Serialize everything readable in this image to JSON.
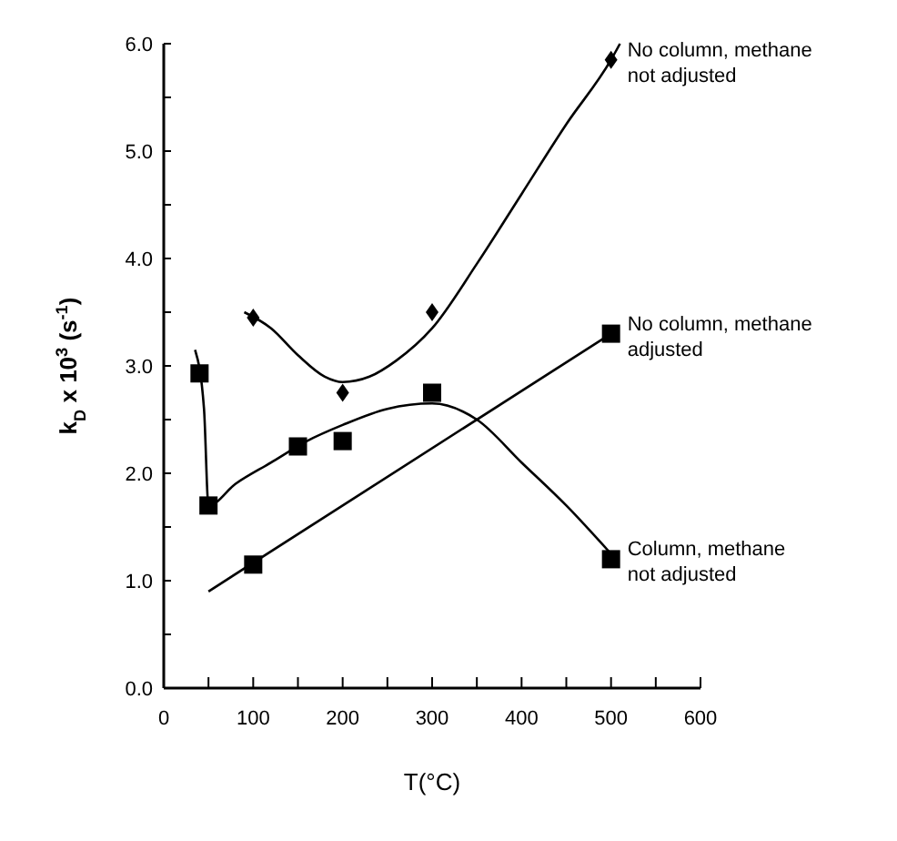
{
  "chart_data": {
    "type": "scatter",
    "xlabel": "T(°C)",
    "ylabel": "k$_{D}$ x 10$^{3}$ (s$^{-1}$)",
    "xlim": [
      0,
      600
    ],
    "ylim": [
      0,
      6
    ],
    "xticks": [
      0,
      {
        "value": 50,
        "label": null
      },
      100,
      {
        "value": 150,
        "label": null
      },
      200,
      {
        "value": 250,
        "label": null
      },
      300,
      {
        "value": 350,
        "label": null
      },
      400,
      {
        "value": 450,
        "label": null
      },
      500,
      {
        "value": 550,
        "label": null
      },
      600
    ],
    "yticks": [
      {
        "value": 0,
        "label": "0.0"
      },
      {
        "value": 0.5,
        "label": null
      },
      {
        "value": 1,
        "label": "1.0"
      },
      {
        "value": 1.5,
        "label": null
      },
      {
        "value": 2,
        "label": "2.0"
      },
      {
        "value": 2.5,
        "label": null
      },
      {
        "value": 3,
        "label": "3.0"
      },
      {
        "value": 3.5,
        "label": null
      },
      {
        "value": 4,
        "label": "4.0"
      },
      {
        "value": 4.5,
        "label": null
      },
      {
        "value": 5,
        "label": "5.0"
      },
      {
        "value": 5.5,
        "label": null
      },
      {
        "value": 6,
        "label": "6.0"
      }
    ],
    "grid": false,
    "series": [
      {
        "name": "No column, methane not adjusted",
        "marker": "diamond",
        "color": "#000000",
        "x": [
          100,
          200,
          300,
          500
        ],
        "values": [
          3.45,
          2.75,
          3.5,
          5.85
        ]
      },
      {
        "name": "No column, methane adjusted",
        "marker": "square",
        "color": "#000000",
        "x": [
          100,
          500
        ],
        "values": [
          1.15,
          3.3
        ]
      },
      {
        "name": "Column, methane not adjusted",
        "marker": "square",
        "color": "#000000",
        "x": [
          40,
          50,
          150,
          200,
          300,
          500
        ],
        "values": [
          2.93,
          1.7,
          2.25,
          2.3,
          2.75,
          1.2
        ]
      },
      {
        "type": "line",
        "marker": "none",
        "line_style": "solid",
        "color": "#000000",
        "x": [
          90,
          120,
          150,
          180,
          200,
          230,
          260,
          300,
          350,
          400,
          450,
          500,
          510
        ],
        "values": [
          3.5,
          3.35,
          3.1,
          2.9,
          2.85,
          2.9,
          3.05,
          3.35,
          3.95,
          4.6,
          5.25,
          5.85,
          6.0
        ]
      },
      {
        "type": "line",
        "marker": "none",
        "line_style": "solid",
        "color": "#000000",
        "x": [
          50,
          500
        ],
        "values": [
          0.9,
          3.3
        ]
      },
      {
        "type": "line",
        "marker": "none",
        "line_style": "solid",
        "color": "#000000",
        "x": [
          35,
          45,
          50,
          80,
          120,
          160,
          200,
          250,
          300,
          350,
          400,
          450,
          500
        ],
        "values": [
          3.15,
          2.6,
          1.7,
          1.9,
          2.1,
          2.3,
          2.45,
          2.6,
          2.65,
          2.5,
          2.1,
          1.7,
          1.25
        ]
      }
    ]
  }
}
